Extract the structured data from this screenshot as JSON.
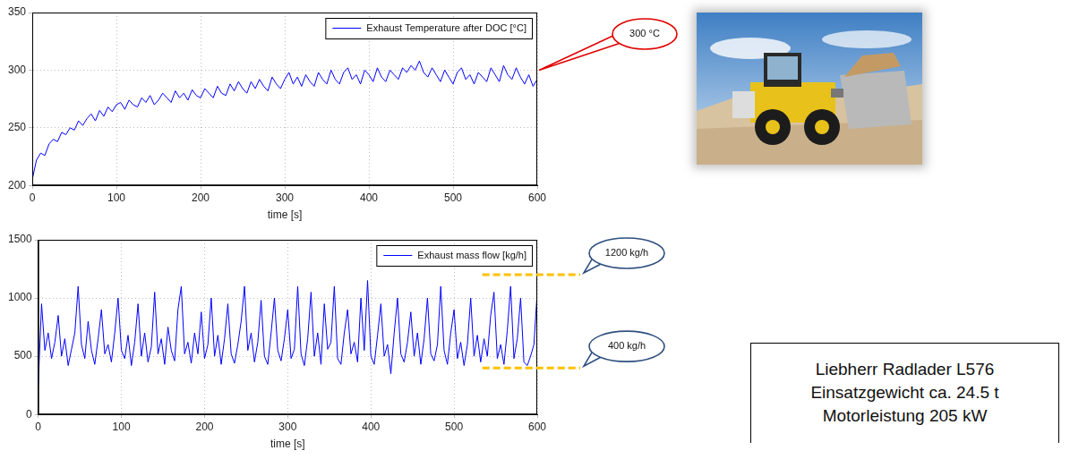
{
  "chart_data": [
    {
      "type": "line",
      "x_label": "time [s]",
      "x": [
        0,
        5,
        10,
        15,
        20,
        25,
        30,
        35,
        40,
        45,
        50,
        55,
        60,
        65,
        70,
        75,
        80,
        85,
        90,
        95,
        100,
        105,
        110,
        115,
        120,
        125,
        130,
        135,
        140,
        145,
        150,
        155,
        160,
        165,
        170,
        175,
        180,
        185,
        190,
        195,
        200,
        205,
        210,
        215,
        220,
        225,
        230,
        235,
        240,
        245,
        250,
        255,
        260,
        265,
        270,
        275,
        280,
        285,
        290,
        295,
        300,
        305,
        310,
        315,
        320,
        325,
        330,
        335,
        340,
        345,
        350,
        355,
        360,
        365,
        370,
        375,
        380,
        385,
        390,
        395,
        400,
        405,
        410,
        415,
        420,
        425,
        430,
        435,
        440,
        445,
        450,
        455,
        460,
        465,
        470,
        475,
        480,
        485,
        490,
        495,
        500,
        505,
        510,
        515,
        520,
        525,
        530,
        535,
        540,
        545,
        550,
        555,
        560,
        565,
        570,
        575,
        580,
        585,
        590,
        595,
        600
      ],
      "series": [
        {
          "name": "Exhaust Temperature after DOC [°C]",
          "color": "#0000ff",
          "line_style": "solid",
          "marker": "none",
          "values": [
            205,
            222,
            228,
            226,
            236,
            240,
            238,
            246,
            244,
            250,
            248,
            256,
            252,
            258,
            262,
            256,
            265,
            260,
            268,
            264,
            270,
            272,
            266,
            274,
            270,
            268,
            276,
            272,
            278,
            270,
            274,
            280,
            276,
            272,
            282,
            276,
            280,
            274,
            283,
            278,
            276,
            284,
            280,
            276,
            286,
            280,
            278,
            288,
            282,
            290,
            284,
            280,
            290,
            284,
            292,
            286,
            282,
            294,
            288,
            284,
            292,
            298,
            288,
            294,
            286,
            296,
            290,
            286,
            298,
            292,
            288,
            300,
            292,
            288,
            298,
            302,
            292,
            296,
            288,
            300,
            296,
            290,
            302,
            294,
            290,
            300,
            296,
            292,
            302,
            298,
            304,
            300,
            308,
            298,
            294,
            302,
            296,
            290,
            300,
            294,
            288,
            298,
            302,
            292,
            296,
            288,
            298,
            294,
            290,
            302,
            296,
            290,
            304,
            296,
            292,
            302,
            294,
            288,
            296,
            286,
            292
          ]
        }
      ],
      "xlim": [
        0,
        600
      ],
      "xticks": [
        0,
        100,
        200,
        300,
        400,
        500,
        600
      ],
      "ylim": [
        200,
        350
      ],
      "yticks": [
        200,
        250,
        300,
        350
      ],
      "grid": true,
      "legend": "upper right",
      "annotations": [
        {
          "text": "300 °C",
          "value": 300
        }
      ]
    },
    {
      "type": "line",
      "x_label": "time [s]",
      "x": [
        0,
        4,
        8,
        12,
        16,
        20,
        24,
        28,
        32,
        36,
        40,
        44,
        48,
        52,
        56,
        60,
        64,
        68,
        72,
        76,
        80,
        84,
        88,
        92,
        96,
        100,
        104,
        108,
        112,
        116,
        120,
        124,
        128,
        132,
        136,
        140,
        144,
        148,
        152,
        156,
        160,
        164,
        168,
        172,
        176,
        180,
        184,
        188,
        192,
        196,
        200,
        204,
        208,
        212,
        216,
        220,
        224,
        228,
        232,
        236,
        240,
        244,
        248,
        252,
        256,
        260,
        264,
        268,
        272,
        276,
        280,
        284,
        288,
        292,
        296,
        300,
        304,
        308,
        312,
        316,
        320,
        324,
        328,
        332,
        336,
        340,
        344,
        348,
        352,
        356,
        360,
        364,
        368,
        372,
        376,
        380,
        384,
        388,
        392,
        396,
        400,
        404,
        408,
        412,
        416,
        420,
        424,
        428,
        432,
        436,
        440,
        444,
        448,
        452,
        456,
        460,
        464,
        468,
        472,
        476,
        480,
        484,
        488,
        492,
        496,
        500,
        504,
        508,
        512,
        516,
        520,
        524,
        528,
        532,
        536,
        540,
        544,
        548,
        552,
        556,
        560,
        564,
        568,
        572,
        576,
        580,
        584,
        588,
        592,
        596,
        600
      ],
      "series": [
        {
          "name": "Exhaust mass flow [kg/h]",
          "color": "#0000ff",
          "line_style": "solid",
          "marker": "none",
          "values": [
            250,
            950,
            550,
            700,
            480,
            620,
            850,
            500,
            650,
            420,
            560,
            700,
            1100,
            600,
            480,
            800,
            550,
            430,
            650,
            900,
            520,
            600,
            450,
            700,
            1000,
            550,
            480,
            680,
            420,
            620,
            950,
            500,
            700,
            450,
            580,
            1050,
            520,
            650,
            430,
            750,
            550,
            460,
            900,
            1100,
            520,
            620,
            440,
            700,
            520,
            880,
            480,
            600,
            1000,
            500,
            680,
            430,
            650,
            950,
            520,
            440,
            600,
            800,
            1100,
            550,
            700,
            450,
            620,
            980,
            500,
            430,
            700,
            1000,
            550,
            460,
            650,
            900,
            480,
            560,
            1100,
            520,
            420,
            650,
            1050,
            500,
            700,
            430,
            950,
            560,
            620,
            1100,
            480,
            430,
            700,
            900,
            520,
            620,
            450,
            1000,
            550,
            1150,
            500,
            430,
            680,
            950,
            500,
            600,
            350,
            700,
            1000,
            520,
            450,
            620,
            880,
            500,
            700,
            430,
            650,
            1000,
            520,
            460,
            600,
            1100,
            550,
            430,
            700,
            900,
            480,
            620,
            420,
            600,
            1000,
            500,
            680,
            450,
            650,
            500,
            850,
            1050,
            480,
            600,
            430,
            720,
            1100,
            480,
            650,
            1000,
            450,
            420,
            500,
            600,
            1050
          ]
        }
      ],
      "xlim": [
        0,
        600
      ],
      "xticks": [
        0,
        100,
        200,
        300,
        400,
        500,
        600
      ],
      "ylim": [
        0,
        1500
      ],
      "yticks": [
        0,
        500,
        1000,
        1500
      ],
      "grid": true,
      "legend": "upper right",
      "annotations": [
        {
          "text": "1200 kg/h",
          "value": 1200
        },
        {
          "text": "400 kg/h",
          "value": 400
        }
      ]
    }
  ],
  "info_box": {
    "lines": [
      "Liebherr Radlader L576",
      "Einsatzgewicht ca. 24.5 t",
      "Motorleistung 205 kW"
    ]
  }
}
